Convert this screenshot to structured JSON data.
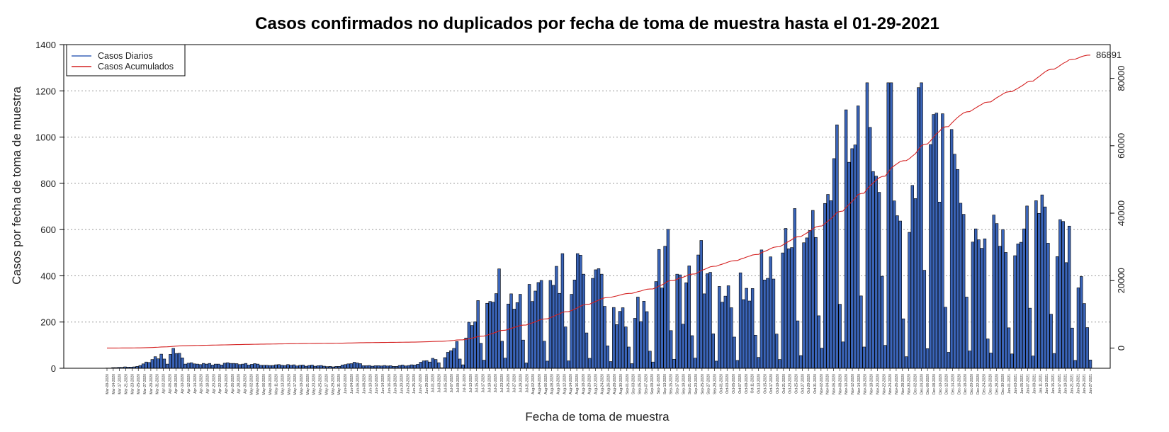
{
  "chart_data": {
    "type": "bar",
    "title": "Casos confirmados no duplicados por fecha de toma de muestra hasta el 01-29-2021",
    "xlabel": "Fecha de toma de muestra",
    "ylabel": "Casos por fecha de toma de muestra",
    "ylim": [
      0,
      1400
    ],
    "yticks": [
      0,
      200,
      400,
      600,
      800,
      1000,
      1200,
      1400
    ],
    "y2lim": [
      -6000,
      90000
    ],
    "y2ticks": [
      0,
      20000,
      40000,
      60000,
      80000
    ],
    "grid": "horizontal dotted",
    "legend_position": "top-left",
    "series": [
      {
        "name": "Casos Diarios",
        "type": "bar",
        "color": "#3a64b8"
      },
      {
        "name": "Casos Acumulados",
        "type": "line",
        "color": "#d42020"
      }
    ],
    "final_cumulative_label": "86891",
    "x_start": "2020-03-09",
    "x_end": "2021-01-29",
    "x_tick_labels": [
      "Mar-09-2020",
      "Mar-14-2020",
      "Mar-17-2020",
      "Mar-21-2020",
      "Mar-23-2020",
      "Mar-25-2020",
      "Mar-27-2020",
      "Mar-29-2020",
      "Mar-31-2020",
      "Apr-02-2020",
      "Apr-06-2020",
      "Apr-08-2020",
      "Apr-10-2020",
      "Apr-12-2020",
      "Apr-14-2020",
      "Apr-16-2020",
      "Apr-18-2020",
      "Apr-20-2020",
      "Apr-22-2020",
      "Apr-24-2020",
      "Apr-26-2020",
      "Apr-28-2020",
      "Apr-30-2020",
      "May-02-2020",
      "May-04-2020",
      "May-06-2020",
      "May-08-2020",
      "May-11-2020",
      "May-13-2020",
      "May-15-2020",
      "May-17-2020",
      "May-19-2020",
      "May-21-2020",
      "May-23-2020",
      "May-25-2020",
      "May-27-2020",
      "May-29-2020",
      "May-31-2020",
      "Jun-02-2020",
      "Jun-04-2020",
      "Jun-06-2020",
      "Jun-08-2020",
      "Jun-10-2020",
      "Jun-12-2020",
      "Jun-14-2020",
      "Jun-16-2020",
      "Jun-18-2020",
      "Jun-20-2020",
      "Jun-23-2020",
      "Jun-25-2020",
      "Jun-27-2020",
      "Jun-29-2020",
      "Jul-01-2020",
      "Jul-03-2020",
      "Jul-05-2020",
      "Jul-07-2020",
      "Jul-09-2020",
      "Jul-11-2020",
      "Jul-13-2020",
      "Jul-15-2020",
      "Jul-17-2020",
      "Jul-19-2020",
      "Jul-21-2020",
      "Jul-23-2020",
      "Jul-25-2020",
      "Jul-27-2020",
      "Jul-29-2020",
      "Jul-31-2020",
      "Aug-02-2020",
      "Aug-04-2020",
      "Aug-06-2020",
      "Aug-08-2020",
      "Aug-10-2020",
      "Aug-12-2020",
      "Aug-14-2020",
      "Aug-16-2020",
      "Aug-18-2020",
      "Aug-20-2020",
      "Aug-22-2020",
      "Aug-24-2020",
      "Aug-26-2020",
      "Aug-28-2020",
      "Aug-30-2020",
      "Sep-01-2020",
      "Sep-03-2020",
      "Sep-05-2020",
      "Sep-07-2020",
      "Sep-09-2020",
      "Sep-11-2020",
      "Sep-13-2020",
      "Sep-15-2020",
      "Sep-17-2020",
      "Sep-19-2020",
      "Sep-21-2020",
      "Sep-23-2020",
      "Sep-25-2020",
      "Sep-27-2020",
      "Sep-29-2020",
      "Oct-01-2020",
      "Oct-03-2020",
      "Oct-05-2020",
      "Oct-07-2020",
      "Oct-09-2020",
      "Oct-11-2020",
      "Oct-13-2020",
      "Oct-15-2020",
      "Oct-17-2020",
      "Oct-19-2020",
      "Oct-21-2020",
      "Oct-23-2020",
      "Oct-25-2020",
      "Oct-27-2020",
      "Oct-29-2020",
      "Oct-31-2020",
      "Nov-02-2020",
      "Nov-04-2020",
      "Nov-06-2020",
      "Nov-08-2020",
      "Nov-10-2020",
      "Nov-12-2020",
      "Nov-14-2020",
      "Nov-16-2020",
      "Nov-18-2020",
      "Nov-20-2020",
      "Nov-22-2020",
      "Nov-24-2020",
      "Nov-26-2020",
      "Nov-28-2020",
      "Nov-30-2020",
      "Dec-02-2020",
      "Dec-04-2020",
      "Dec-06-2020",
      "Dec-08-2020",
      "Dec-10-2020",
      "Dec-12-2020",
      "Dec-14-2020",
      "Dec-16-2020",
      "Dec-18-2020",
      "Dec-20-2020",
      "Dec-22-2020",
      "Dec-24-2020",
      "Dec-26-2020",
      "Dec-28-2020",
      "Dec-30-2020",
      "Jan-01-2021",
      "Jan-03-2021",
      "Jan-05-2021",
      "Jan-07-2021",
      "Jan-09-2021",
      "Jan-11-2021",
      "Jan-13-2021",
      "Jan-15-2021",
      "Jan-17-2021",
      "Jan-19-2021",
      "Jan-21-2021",
      "Jan-23-2021",
      "Jan-25-2021",
      "Jan-27-2021"
    ],
    "keypoints": [
      [
        "2020-03-09",
        1
      ],
      [
        "2020-03-14",
        5
      ],
      [
        "2020-03-20",
        10
      ],
      [
        "2020-03-24",
        40
      ],
      [
        "2020-03-27",
        55
      ],
      [
        "2020-03-29",
        20
      ],
      [
        "2020-03-31",
        80
      ],
      [
        "2020-04-02",
        60
      ],
      [
        "2020-04-04",
        25
      ],
      [
        "2020-04-12",
        20
      ],
      [
        "2020-04-20",
        20
      ],
      [
        "2020-05-01",
        15
      ],
      [
        "2020-05-15",
        12
      ],
      [
        "2020-05-25",
        8
      ],
      [
        "2020-05-30",
        25
      ],
      [
        "2020-06-03",
        10
      ],
      [
        "2020-06-12",
        10
      ],
      [
        "2020-06-20",
        18
      ],
      [
        "2020-06-25",
        40
      ],
      [
        "2020-06-28",
        15
      ],
      [
        "2020-07-01",
        85
      ],
      [
        "2020-07-05",
        140
      ],
      [
        "2020-07-09",
        220
      ],
      [
        "2020-07-13",
        320
      ],
      [
        "2020-07-17",
        440
      ],
      [
        "2020-07-21",
        330
      ],
      [
        "2020-07-26",
        300
      ],
      [
        "2020-08-01",
        330
      ],
      [
        "2020-08-07",
        440
      ],
      [
        "2020-08-12",
        410
      ],
      [
        "2020-08-18",
        380
      ],
      [
        "2020-08-24",
        250
      ],
      [
        "2020-08-30",
        240
      ],
      [
        "2020-09-05",
        280
      ],
      [
        "2020-09-09",
        480
      ],
      [
        "2020-09-12",
        590
      ],
      [
        "2020-09-16",
        250
      ],
      [
        "2020-09-20",
        600
      ],
      [
        "2020-09-24",
        370
      ],
      [
        "2020-09-30",
        320
      ],
      [
        "2020-10-04",
        330
      ],
      [
        "2020-10-10",
        440
      ],
      [
        "2020-10-16",
        500
      ],
      [
        "2020-10-22",
        560
      ],
      [
        "2020-10-27",
        680
      ],
      [
        "2020-10-31",
        700
      ],
      [
        "2020-11-04",
        900
      ],
      [
        "2020-11-08",
        960
      ],
      [
        "2020-11-12",
        850
      ],
      [
        "2020-11-16",
        1170
      ],
      [
        "2020-11-20",
        1000
      ],
      [
        "2020-11-23",
        1220
      ],
      [
        "2020-11-26",
        800
      ],
      [
        "2020-11-30",
        550
      ],
      [
        "2020-12-03",
        1090
      ],
      [
        "2020-12-06",
        1000
      ],
      [
        "2020-12-10",
        930
      ],
      [
        "2020-12-14",
        860
      ],
      [
        "2020-12-18",
        780
      ],
      [
        "2020-12-22",
        650
      ],
      [
        "2020-12-26",
        500
      ],
      [
        "2020-12-30",
        690
      ],
      [
        "2021-01-03",
        620
      ],
      [
        "2021-01-07",
        620
      ],
      [
        "2021-01-11",
        640
      ],
      [
        "2021-01-15",
        640
      ],
      [
        "2021-01-19",
        560
      ],
      [
        "2021-01-23",
        500
      ],
      [
        "2021-01-26",
        400
      ],
      [
        "2021-01-29",
        30
      ]
    ]
  },
  "legend": {
    "daily_label": "Casos Diarios",
    "cumulative_label": "Casos Acumulados"
  }
}
